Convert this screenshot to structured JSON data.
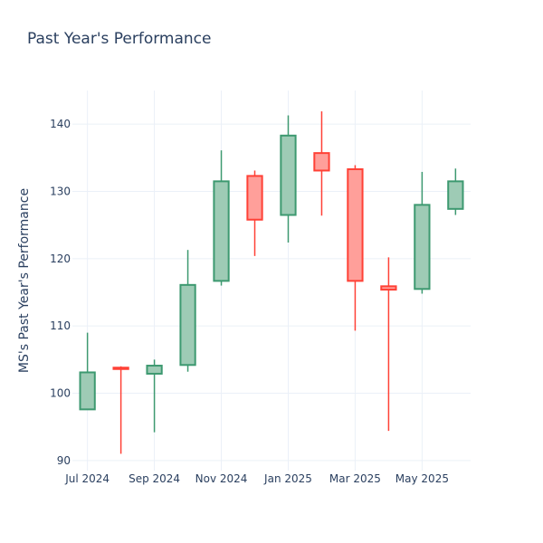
{
  "chart_data": {
    "type": "candlestick",
    "title": "Past Year's Performance",
    "ylabel": "MS's Past Year's Performance",
    "xlabel": "",
    "ylim": [
      88.5,
      145
    ],
    "yticks": [
      90,
      100,
      110,
      120,
      130,
      140
    ],
    "xticks": [
      {
        "label": "Jul 2024",
        "x": 0
      },
      {
        "label": "Sep 2024",
        "x": 2
      },
      {
        "label": "Nov 2024",
        "x": 4
      },
      {
        "label": "Jan 2025",
        "x": 6
      },
      {
        "label": "Mar 2025",
        "x": 8
      },
      {
        "label": "May 2025",
        "x": 10
      }
    ],
    "grid": true,
    "increasing_color": "#3d9970",
    "increasing_fill": "#9ecbb5",
    "decreasing_color": "#ff4136",
    "decreasing_fill": "#ff9f9a",
    "candles": [
      {
        "x": 0,
        "open": 97.6,
        "high": 109.0,
        "low": 97.6,
        "close": 103.1
      },
      {
        "x": 1,
        "open": 103.8,
        "high": 104.0,
        "low": 91.0,
        "close": 103.6
      },
      {
        "x": 2,
        "open": 102.9,
        "high": 105.0,
        "low": 94.2,
        "close": 104.1
      },
      {
        "x": 3,
        "open": 104.2,
        "high": 121.3,
        "low": 103.2,
        "close": 116.1
      },
      {
        "x": 4,
        "open": 116.7,
        "high": 136.1,
        "low": 116.0,
        "close": 131.5
      },
      {
        "x": 5,
        "open": 132.3,
        "high": 133.1,
        "low": 120.4,
        "close": 125.8
      },
      {
        "x": 6,
        "open": 126.5,
        "high": 141.3,
        "low": 122.4,
        "close": 138.3
      },
      {
        "x": 7,
        "open": 135.7,
        "high": 141.9,
        "low": 126.4,
        "close": 133.1
      },
      {
        "x": 8,
        "open": 133.3,
        "high": 133.9,
        "low": 109.3,
        "close": 116.7
      },
      {
        "x": 9,
        "open": 115.9,
        "high": 120.2,
        "low": 94.4,
        "close": 115.4
      },
      {
        "x": 10,
        "open": 115.5,
        "high": 132.9,
        "low": 114.8,
        "close": 128.0
      },
      {
        "x": 11,
        "open": 127.4,
        "high": 133.4,
        "low": 126.5,
        "close": 131.5
      }
    ]
  }
}
